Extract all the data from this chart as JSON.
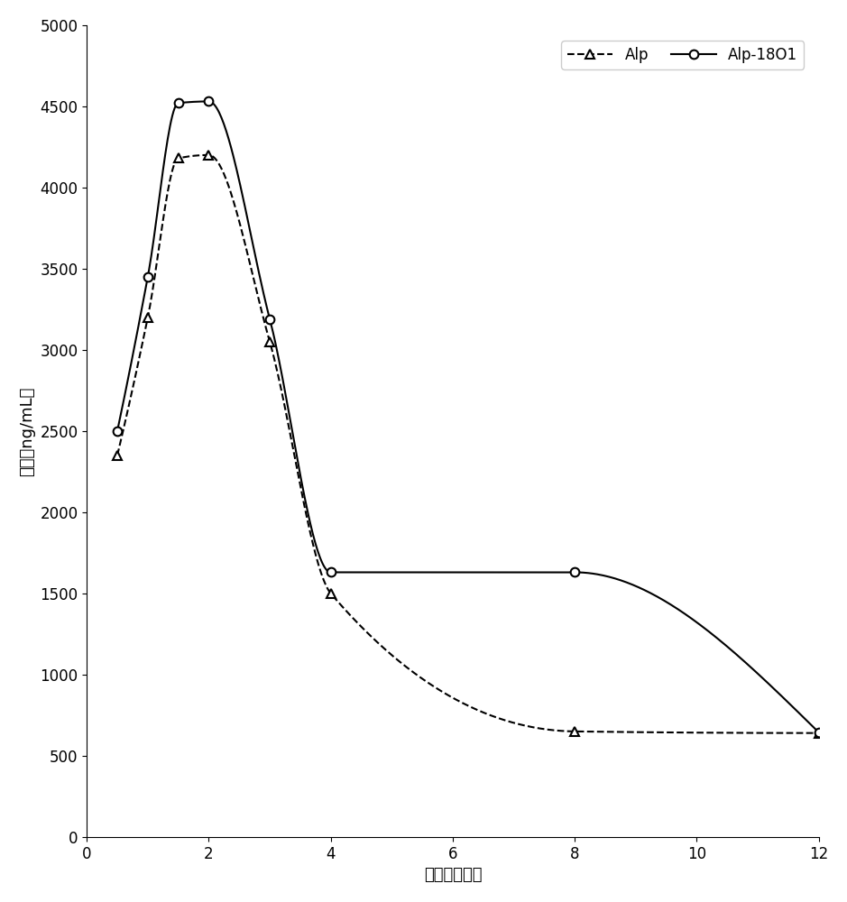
{
  "alp_x": [
    0.5,
    1.0,
    1.5,
    2.0,
    3.0,
    4.0,
    8.0,
    12.0
  ],
  "alp_y": [
    2350,
    3200,
    4180,
    4200,
    3050,
    1500,
    650,
    640
  ],
  "alp18o1_x": [
    0.5,
    1.0,
    1.5,
    2.0,
    3.0,
    4.0,
    8.0,
    12.0
  ],
  "alp18o1_y": [
    2500,
    3450,
    4520,
    4530,
    3190,
    1630,
    1630,
    645
  ],
  "xlabel": "时间（小时）",
  "ylabel": "浓度（ng/mL）",
  "legend_alp": "Alp",
  "legend_alp18o1": "Alp-18O1",
  "xlim": [
    0,
    12
  ],
  "ylim": [
    0,
    5000
  ],
  "xticks": [
    0,
    2,
    4,
    6,
    8,
    10,
    12
  ],
  "yticks": [
    0,
    500,
    1000,
    1500,
    2000,
    2500,
    3000,
    3500,
    4000,
    4500,
    5000
  ],
  "line_color": "#000000",
  "bg_color": "#ffffff",
  "fontsize_label": 13,
  "fontsize_tick": 12,
  "fontsize_legend": 12
}
